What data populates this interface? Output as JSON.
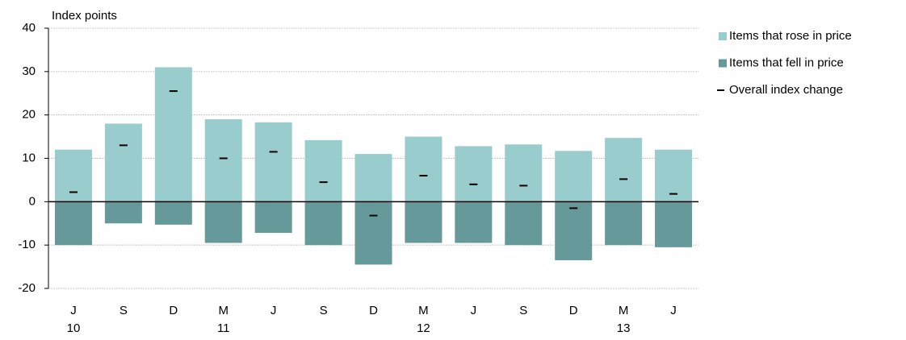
{
  "chart_data": {
    "type": "bar",
    "y_axis_label": "Index points",
    "categories": [
      "J",
      "S",
      "D",
      "M",
      "J",
      "S",
      "D",
      "M",
      "J",
      "S",
      "D",
      "M",
      "J"
    ],
    "year_labels": [
      "10",
      null,
      null,
      "11",
      null,
      null,
      null,
      "12",
      null,
      null,
      null,
      "13",
      null
    ],
    "series": [
      {
        "name": "Items that rose in price",
        "color": "#99cccc",
        "values": [
          12,
          18,
          31,
          19,
          18.3,
          14.2,
          11,
          15,
          12.8,
          13.2,
          11.7,
          14.7,
          12
        ]
      },
      {
        "name": "Items that fell in price",
        "color": "#669999",
        "values": [
          -10,
          -5,
          -5.3,
          -9.5,
          -7.2,
          -10,
          -14.5,
          -9.5,
          -9.5,
          -10,
          -13.5,
          -10,
          -10.5
        ]
      },
      {
        "name": "Overall index change",
        "color": "#000000",
        "marker": "dash",
        "values": [
          2.2,
          13,
          25.5,
          10,
          11.5,
          4.5,
          -3.2,
          6,
          4,
          3.7,
          -1.5,
          5.2,
          1.8
        ]
      }
    ],
    "ylim": [
      -20,
      40
    ],
    "yticks": [
      -20,
      -10,
      0,
      10,
      20,
      30,
      40
    ],
    "grid": true,
    "legend": "right"
  }
}
